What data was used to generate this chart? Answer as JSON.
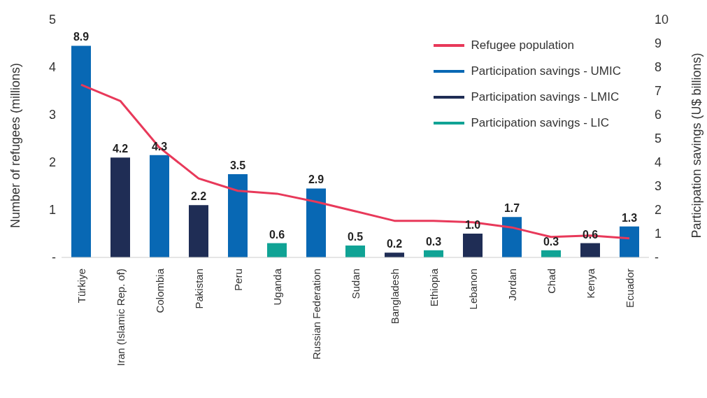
{
  "chart_data": {
    "type": "bar",
    "stacked": true,
    "ylabel": "Number of refugees (millions)",
    "y2label": "Participation savings  (U$ billions)",
    "categories": [
      "Türkiye",
      "Iran (Islamic Rep. of)",
      "Colombia",
      "Pakistan",
      "Peru",
      "Uganda",
      "Russian Federation",
      "Sudan",
      "Bangladesh",
      "Ethiopia",
      "Lebanon",
      "Jordan",
      "Chad",
      "Kenya",
      "Ecuador"
    ],
    "series": [
      {
        "name": "Refugee population",
        "type": "line",
        "color": "#e8395a",
        "values": [
          3.63,
          3.29,
          2.31,
          1.66,
          1.4,
          1.34,
          1.17,
          0.97,
          0.77,
          0.77,
          0.74,
          0.63,
          0.43,
          0.46,
          0.4
        ]
      },
      {
        "name": "Participation savings - UMIC",
        "axis": "y2",
        "color": "#0868b4",
        "values": [
          8.9,
          null,
          4.3,
          null,
          3.5,
          null,
          2.9,
          null,
          null,
          null,
          null,
          1.7,
          null,
          null,
          1.3
        ],
        "value_labels": [
          "8.9",
          null,
          "4.3",
          null,
          "3.5",
          null,
          "2.9",
          null,
          null,
          null,
          null,
          "1.7",
          null,
          null,
          "1.3"
        ]
      },
      {
        "name": "Participation savings - LMIC",
        "axis": "y2",
        "color": "#1f2d55",
        "values": [
          null,
          4.2,
          null,
          2.2,
          null,
          null,
          null,
          null,
          0.2,
          null,
          1.0,
          null,
          null,
          0.6,
          null
        ],
        "value_labels": [
          null,
          "4.2",
          null,
          "2.2",
          null,
          null,
          null,
          null,
          "0.2",
          null,
          "1.0",
          null,
          null,
          "0.6",
          null
        ]
      },
      {
        "name": "Participation savings - LIC",
        "axis": "y2",
        "color": "#10a395",
        "values": [
          null,
          null,
          null,
          null,
          null,
          0.6,
          null,
          0.5,
          null,
          0.3,
          null,
          null,
          0.3,
          null,
          null
        ],
        "value_labels": [
          null,
          null,
          null,
          null,
          null,
          "0.6",
          null,
          "0.5",
          null,
          "0.3",
          null,
          null,
          "0.3",
          null,
          null
        ]
      }
    ],
    "ylim": [
      0,
      5
    ],
    "yticks": [
      {
        "value": 0,
        "label": "-"
      },
      1,
      2,
      3,
      4,
      5
    ],
    "y2lim": [
      0,
      10
    ],
    "y2ticks": [
      {
        "value": 0,
        "label": "-"
      },
      1,
      2,
      3,
      4,
      5,
      6,
      7,
      8,
      9,
      10
    ],
    "grid": false,
    "legend": "top right",
    "marker": "none",
    "line_style": "solid"
  }
}
